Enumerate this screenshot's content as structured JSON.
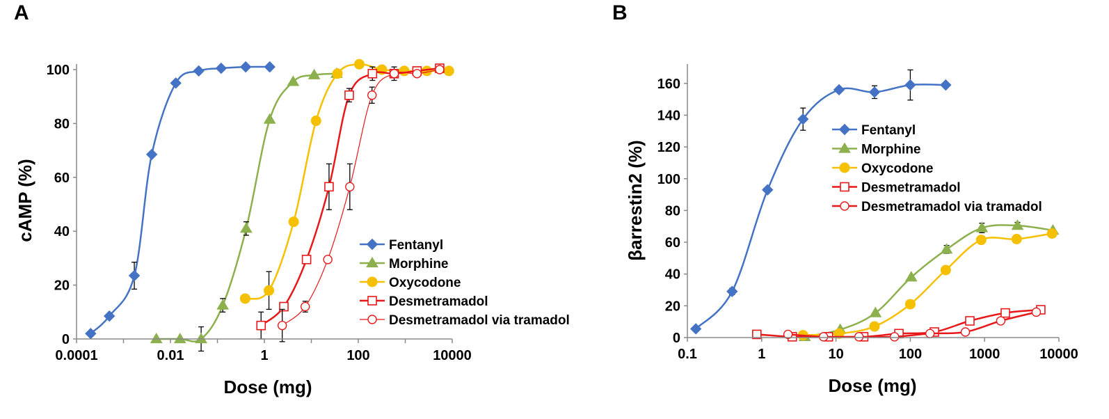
{
  "chart_data": [
    {
      "panel": "A",
      "type": "line",
      "xscale": "log",
      "xlabel": "Dose (mg)",
      "ylabel": "cAMP (%)",
      "xlim": [
        0.0001,
        10000
      ],
      "ylim": [
        0,
        100
      ],
      "xticks": [
        {
          "value": 0.0001,
          "label": "0.0001"
        },
        {
          "value": 0.01,
          "label": "0.01"
        },
        {
          "value": 1,
          "label": "1"
        },
        {
          "value": 100,
          "label": "100"
        },
        {
          "value": 10000,
          "label": "10000"
        }
      ],
      "yticks": [
        {
          "value": 0,
          "label": "0"
        },
        {
          "value": 20,
          "label": "20"
        },
        {
          "value": 40,
          "label": "40"
        },
        {
          "value": 60,
          "label": "60"
        },
        {
          "value": 80,
          "label": "80"
        },
        {
          "value": 100,
          "label": "100"
        }
      ],
      "legend": {
        "position": "bottom-right"
      },
      "series": [
        {
          "name": "Fentanyl",
          "color": "#4472c4",
          "marker": "diamond",
          "line_width": 2.5,
          "x": [
            0.0002,
            0.0005,
            0.0017,
            0.004,
            0.013,
            0.04,
            0.12,
            0.4,
            1.3
          ],
          "y": [
            2,
            8.5,
            23.5,
            68.5,
            95,
            99.5,
            100.5,
            101,
            101
          ],
          "err": [
            0,
            0,
            5,
            0,
            0,
            0,
            0,
            0,
            0
          ]
        },
        {
          "name": "Morphine",
          "color": "#8db04e",
          "marker": "triangle",
          "line_width": 2.5,
          "x": [
            0.005,
            0.016,
            0.045,
            0.13,
            0.41,
            1.3,
            4.1,
            11.5,
            34.5
          ],
          "y": [
            0,
            0,
            0,
            12.5,
            41,
            81.5,
            95.5,
            98,
            98.5
          ],
          "err": [
            0,
            0,
            4.5,
            2.5,
            2.5,
            0,
            0,
            0,
            0
          ]
        },
        {
          "name": "Oxycodone",
          "color": "#f5c000",
          "marker": "circle",
          "line_width": 2.5,
          "x": [
            0.39,
            1.25,
            4.2,
            12.6,
            36,
            105,
            318,
            950,
            2880,
            8500
          ],
          "y": [
            15,
            18,
            43.5,
            81,
            98.5,
            102,
            100,
            99.5,
            99.5,
            99.5
          ],
          "err": [
            0,
            7,
            0,
            0,
            0,
            0,
            0,
            0,
            0,
            0
          ]
        },
        {
          "name": "Desmetramadol",
          "color": "#e8181a",
          "marker": "square-open",
          "line_width": 2.5,
          "x": [
            0.85,
            2.6,
            7.9,
            23.8,
            64,
            200,
            580,
            1780,
            5400
          ],
          "y": [
            5,
            12,
            29.5,
            56.5,
            90.5,
            98.5,
            98.5,
            99.5,
            100.5
          ],
          "err": [
            5,
            0,
            0,
            8.5,
            2.5,
            2.5,
            2.5,
            0,
            0
          ]
        },
        {
          "name": "Desmetramadol via tramadol",
          "color": "#e8181a",
          "marker": "circle-open",
          "line_width": 1.2,
          "x": [
            2.4,
            7.4,
            22.4,
            66,
            196,
            582,
            1780,
            5400
          ],
          "y": [
            5,
            12,
            29.5,
            56.5,
            90.5,
            98.5,
            98.5,
            100
          ],
          "err": [
            6,
            2,
            0,
            8.5,
            3,
            0,
            0,
            0
          ]
        }
      ]
    },
    {
      "panel": "B",
      "type": "line",
      "xscale": "log",
      "xlabel": "Dose (mg)",
      "ylabel": "βarrestin2 (%)",
      "xlim": [
        0.1,
        10000
      ],
      "ylim": [
        0,
        170
      ],
      "xticks": [
        {
          "value": 0.1,
          "label": "0.1"
        },
        {
          "value": 1,
          "label": "1"
        },
        {
          "value": 10,
          "label": "10"
        },
        {
          "value": 100,
          "label": "100"
        },
        {
          "value": 1000,
          "label": "1000"
        },
        {
          "value": 10000,
          "label": "10000"
        }
      ],
      "yticks": [
        {
          "value": 0,
          "label": "0"
        },
        {
          "value": 20,
          "label": "20"
        },
        {
          "value": 40,
          "label": "40"
        },
        {
          "value": 60,
          "label": "60"
        },
        {
          "value": 80,
          "label": "80"
        },
        {
          "value": 100,
          "label": "100"
        },
        {
          "value": 120,
          "label": "120"
        },
        {
          "value": 140,
          "label": "140"
        },
        {
          "value": 160,
          "label": "160"
        }
      ],
      "legend": {
        "position": "top-center"
      },
      "series": [
        {
          "name": "Fentanyl",
          "color": "#4472c4",
          "marker": "diamond",
          "line_width": 2.5,
          "x": [
            0.13,
            0.4,
            1.2,
            3.6,
            11,
            33,
            100,
            300
          ],
          "y": [
            5.5,
            29,
            93,
            137.5,
            156,
            154.5,
            159,
            159
          ],
          "err": [
            0,
            2,
            0,
            7,
            0,
            4,
            9.5,
            0
          ]
        },
        {
          "name": "Morphine",
          "color": "#8db04e",
          "marker": "triangle",
          "line_width": 2.5,
          "x": [
            3.8,
            11.4,
            34,
            103,
            308,
            920,
            2770,
            8300
          ],
          "y": [
            0.5,
            5,
            15.5,
            38,
            55.5,
            69,
            70.5,
            67.5
          ],
          "err": [
            0,
            0,
            0,
            0,
            2.5,
            3,
            2,
            0
          ]
        },
        {
          "name": "Oxycodone",
          "color": "#f5c000",
          "marker": "circle",
          "line_width": 2.5,
          "x": [
            3.6,
            11,
            33,
            100,
            300,
            900,
            2700,
            8100
          ],
          "y": [
            1.5,
            2.5,
            7,
            21,
            42.5,
            61.5,
            62,
            65.5
          ],
          "err": [
            0,
            0,
            0,
            0,
            0,
            2,
            2.5,
            0
          ]
        },
        {
          "name": "Desmetramadol",
          "color": "#e8181a",
          "marker": "square-open",
          "line_width": 2.5,
          "x": [
            0.86,
            2.58,
            7.9,
            23.6,
            70.3,
            211,
            633,
            1900,
            5700
          ],
          "y": [
            2,
            0.5,
            0.5,
            0.5,
            2.5,
            3.5,
            10.5,
            15.5,
            17.5
          ],
          "err": [
            0,
            0,
            0,
            0,
            0,
            0,
            2,
            0,
            0
          ]
        },
        {
          "name": "Desmetramadol via tramadol",
          "color": "#e8181a",
          "marker": "circle-open",
          "line_width": 2.5,
          "x": [
            2.26,
            6.8,
            20.4,
            61.3,
            184,
            551,
            1650,
            4960
          ],
          "y": [
            2,
            0.5,
            0.5,
            0.5,
            2.5,
            3.5,
            10.5,
            16
          ],
          "err": [
            0,
            0,
            0,
            0,
            0,
            0,
            0,
            0
          ]
        }
      ]
    }
  ],
  "panels": {
    "a": {
      "letter": "A",
      "xlabel": "Dose (mg)",
      "ylabel": "cAMP (%)"
    },
    "b": {
      "letter": "B",
      "xlabel": "Dose (mg)",
      "ylabel": "βarrestin2 (%)"
    }
  }
}
